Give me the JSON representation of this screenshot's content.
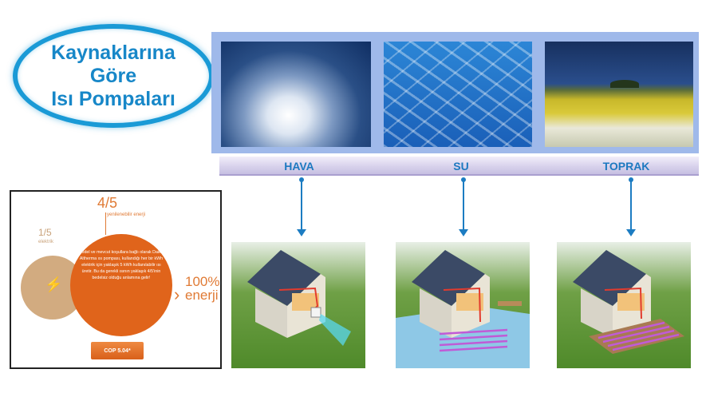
{
  "title": {
    "line1": "Kaynaklarına",
    "line2": "Göre",
    "line3": "Isı Pompaları"
  },
  "sources": [
    {
      "label": "HAVA",
      "photo": "cloudy-sky-photo",
      "house": "air-heat-pump-house"
    },
    {
      "label": "SU",
      "photo": "water-surface-photo",
      "house": "water-heat-pump-house"
    },
    {
      "label": "TOPRAK",
      "photo": "flower-field-photo",
      "house": "ground-heat-pump-house"
    }
  ],
  "energy": {
    "renewable_fraction": "4/5",
    "renewable_label": "yenilenebilir enerji",
    "electric_fraction": "1/5",
    "electric_label": "elektrik",
    "description": "Model ve mevcut koşullara bağlı olarak Daikin Altherma ısı pompası, kullandığı her bir kWh elektrik için yaklaşık 5 kWh kullanılabilir ısı üretir. Bu da gerekli ısının yaklaşık 4/5'inin bedelsiz olduğu anlamına gelir!",
    "result_percent": "100%",
    "result_label": "enerji",
    "cop": "COP 5.04*"
  },
  "colors": {
    "title": "#1787c8",
    "accent_blue": "#1c7cc2",
    "orange": "#e0641b",
    "tan": "#d2ab80"
  }
}
